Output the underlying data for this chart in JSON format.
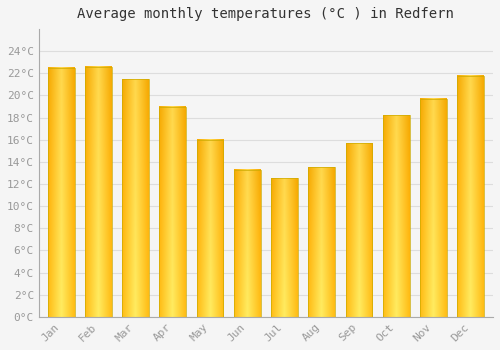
{
  "title": "Average monthly temperatures (°C ) in Redfern",
  "months": [
    "Jan",
    "Feb",
    "Mar",
    "Apr",
    "May",
    "Jun",
    "Jul",
    "Aug",
    "Sep",
    "Oct",
    "Nov",
    "Dec"
  ],
  "values": [
    22.5,
    22.6,
    21.5,
    19.0,
    16.0,
    13.3,
    12.5,
    13.5,
    15.7,
    18.2,
    19.7,
    21.8
  ],
  "bar_color_center": "#FFD84D",
  "bar_color_edge": "#F5A800",
  "background_color": "#F5F5F5",
  "grid_color": "#DDDDDD",
  "ylim": [
    0,
    26
  ],
  "yticks": [
    0,
    2,
    4,
    6,
    8,
    10,
    12,
    14,
    16,
    18,
    20,
    22,
    24
  ],
  "title_fontsize": 10,
  "tick_fontsize": 8,
  "title_color": "#333333",
  "tick_color": "#999999"
}
